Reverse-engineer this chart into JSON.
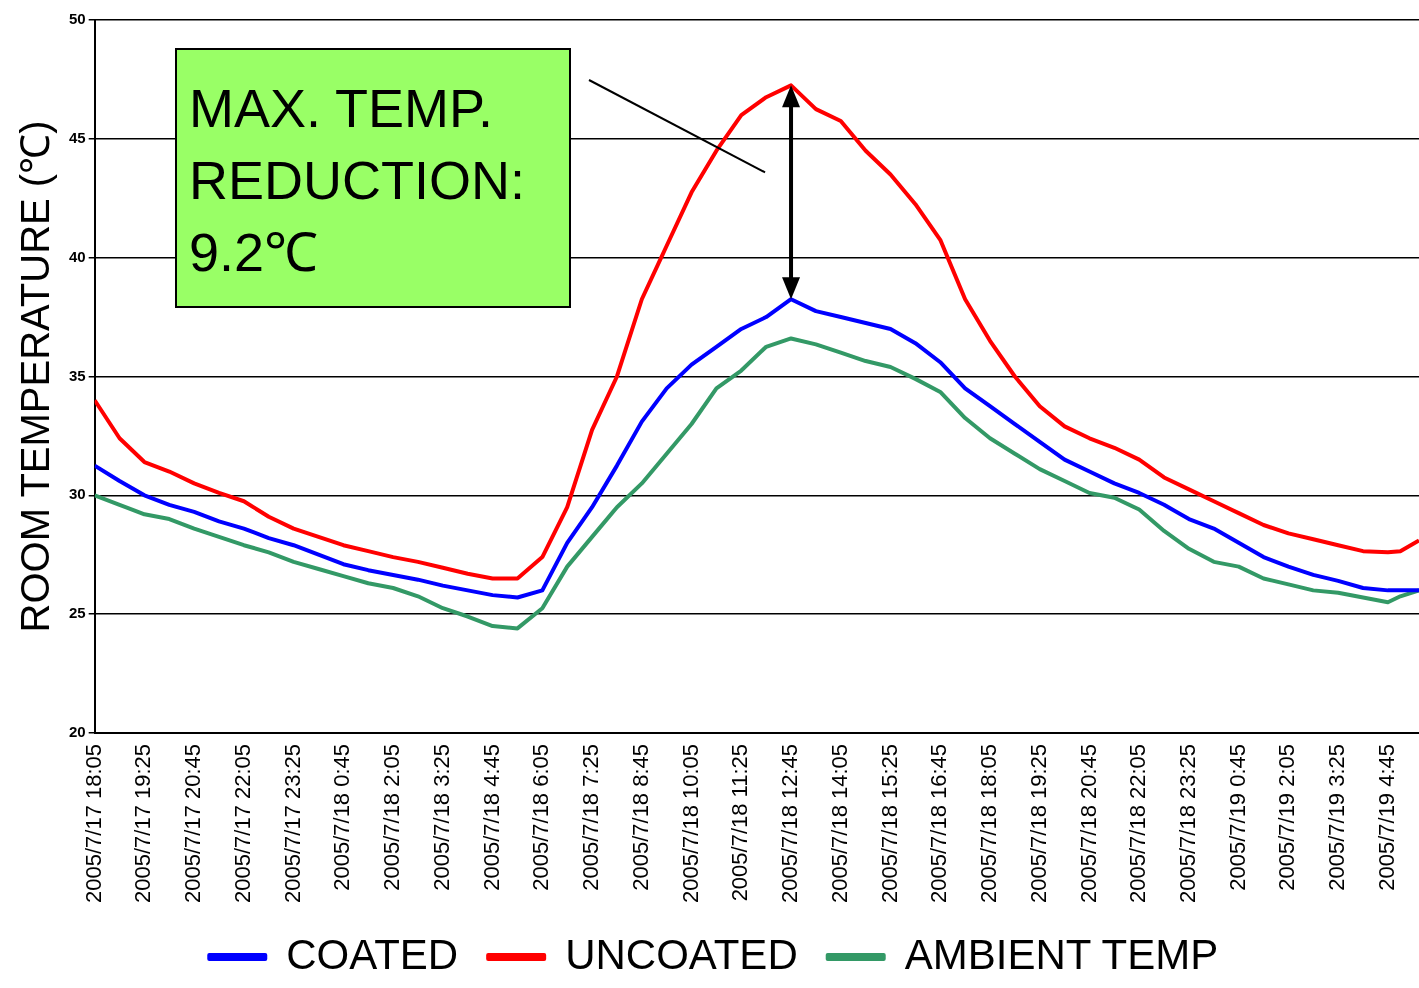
{
  "chart_data": {
    "type": "line",
    "ylabel": "ROOM TEMPERATURE (℃)",
    "annotations": [
      "MAX. TEMP. REDUCTION: 9.2℃"
    ],
    "x": [
      "2005-07-17T18:05",
      "2005-07-17T18:45",
      "2005-07-17T19:25",
      "2005-07-17T20:05",
      "2005-07-17T20:45",
      "2005-07-17T21:25",
      "2005-07-17T22:05",
      "2005-07-17T22:45",
      "2005-07-17T23:25",
      "2005-07-18T00:05",
      "2005-07-18T00:45",
      "2005-07-18T01:25",
      "2005-07-18T02:05",
      "2005-07-18T02:45",
      "2005-07-18T03:25",
      "2005-07-18T04:05",
      "2005-07-18T04:45",
      "2005-07-18T05:25",
      "2005-07-18T06:05",
      "2005-07-18T06:45",
      "2005-07-18T07:25",
      "2005-07-18T08:05",
      "2005-07-18T08:45",
      "2005-07-18T09:25",
      "2005-07-18T10:05",
      "2005-07-18T10:45",
      "2005-07-18T11:25",
      "2005-07-18T12:05",
      "2005-07-18T12:45",
      "2005-07-18T13:25",
      "2005-07-18T14:05",
      "2005-07-18T14:45",
      "2005-07-18T15:25",
      "2005-07-18T16:05",
      "2005-07-18T16:45",
      "2005-07-18T17:25",
      "2005-07-18T18:05",
      "2005-07-18T18:45",
      "2005-07-18T19:25",
      "2005-07-18T20:05",
      "2005-07-18T20:45",
      "2005-07-18T21:25",
      "2005-07-18T22:05",
      "2005-07-18T22:45",
      "2005-07-18T23:25",
      "2005-07-19T00:05",
      "2005-07-19T00:45",
      "2005-07-19T01:25",
      "2005-07-19T02:05",
      "2005-07-19T02:45",
      "2005-07-19T03:25",
      "2005-07-19T04:05",
      "2005-07-19T04:45",
      "2005-07-19T05:05",
      "2005-07-19T05:35"
    ],
    "series": [
      {
        "name": "COATED",
        "color": "#0000ff",
        "values": [
          31.25,
          30.6,
          30.0,
          29.6,
          29.3,
          28.9,
          28.6,
          28.2,
          27.9,
          27.5,
          27.1,
          26.85,
          26.65,
          26.45,
          26.2,
          26.0,
          25.8,
          25.7,
          26.0,
          28.0,
          29.5,
          31.25,
          33.1,
          34.5,
          35.5,
          36.25,
          37.0,
          37.5,
          38.25,
          37.75,
          37.5,
          37.25,
          37.0,
          36.4,
          35.6,
          34.5,
          33.75,
          33.0,
          32.25,
          31.5,
          31.0,
          30.5,
          30.1,
          29.6,
          29.0,
          28.6,
          28.0,
          27.4,
          27.0,
          26.65,
          26.4,
          26.1,
          26.0,
          26.0,
          26.0
        ]
      },
      {
        "name": "UNCOATED",
        "color": "#ff0000",
        "values": [
          34.0,
          32.4,
          31.4,
          31.0,
          30.5,
          30.1,
          29.75,
          29.1,
          28.6,
          28.25,
          27.9,
          27.65,
          27.4,
          27.2,
          26.95,
          26.7,
          26.5,
          26.5,
          27.4,
          29.5,
          32.75,
          35.0,
          38.25,
          40.5,
          42.75,
          44.5,
          46.0,
          46.75,
          47.25,
          46.25,
          45.75,
          44.5,
          43.5,
          42.25,
          40.75,
          38.25,
          36.5,
          35.0,
          33.75,
          32.9,
          32.4,
          32.0,
          31.5,
          30.75,
          30.25,
          29.75,
          29.25,
          28.75,
          28.4,
          28.15,
          27.9,
          27.65,
          27.6,
          27.65,
          28.1
        ]
      },
      {
        "name": "AMBIENT TEMP",
        "color": "#339966",
        "values": [
          30.0,
          29.6,
          29.2,
          29.0,
          28.6,
          28.25,
          27.9,
          27.6,
          27.2,
          26.9,
          26.6,
          26.3,
          26.1,
          25.75,
          25.25,
          24.9,
          24.5,
          24.4,
          25.25,
          27.0,
          28.25,
          29.5,
          30.5,
          31.75,
          33.0,
          34.5,
          35.25,
          36.25,
          36.6,
          36.35,
          36.0,
          35.65,
          35.4,
          34.9,
          34.35,
          33.25,
          32.4,
          31.75,
          31.1,
          30.6,
          30.1,
          29.9,
          29.4,
          28.5,
          27.75,
          27.2,
          27.0,
          26.5,
          26.25,
          26.0,
          25.9,
          25.7,
          25.5,
          25.75,
          26.0
        ]
      }
    ],
    "xlim": [
      "2005-07-17T18:05",
      "2005-07-19T05:35"
    ],
    "xticks": [
      {
        "value": "2005-07-17T18:05",
        "label": "2005/7/17 18:05"
      },
      {
        "value": "2005-07-17T19:25",
        "label": "2005/7/17 19:25"
      },
      {
        "value": "2005-07-17T20:45",
        "label": "2005/7/17 20:45"
      },
      {
        "value": "2005-07-17T22:05",
        "label": "2005/7/17 22:05"
      },
      {
        "value": "2005-07-17T23:25",
        "label": "2005/7/17 23:25"
      },
      {
        "value": "2005-07-18T00:45",
        "label": "2005/7/18 0:45"
      },
      {
        "value": "2005-07-18T02:05",
        "label": "2005/7/18 2:05"
      },
      {
        "value": "2005-07-18T03:25",
        "label": "2005/7/18 3:25"
      },
      {
        "value": "2005-07-18T04:45",
        "label": "2005/7/18 4:45"
      },
      {
        "value": "2005-07-18T06:05",
        "label": "2005/7/18 6:05"
      },
      {
        "value": "2005-07-18T07:25",
        "label": "2005/7/18 7:25"
      },
      {
        "value": "2005-07-18T08:45",
        "label": "2005/7/18 8:45"
      },
      {
        "value": "2005-07-18T10:05",
        "label": "2005/7/18 10:05"
      },
      {
        "value": "2005-07-18T11:25",
        "label": "2005/7/18 11:25"
      },
      {
        "value": "2005-07-18T12:45",
        "label": "2005/7/18 12:45"
      },
      {
        "value": "2005-07-18T14:05",
        "label": "2005/7/18 14:05"
      },
      {
        "value": "2005-07-18T15:25",
        "label": "2005/7/18 15:25"
      },
      {
        "value": "2005-07-18T16:45",
        "label": "2005/7/18 16:45"
      },
      {
        "value": "2005-07-18T18:05",
        "label": "2005/7/18 18:05"
      },
      {
        "value": "2005-07-18T19:25",
        "label": "2005/7/18 19:25"
      },
      {
        "value": "2005-07-18T20:45",
        "label": "2005/7/18 20:45"
      },
      {
        "value": "2005-07-18T22:05",
        "label": "2005/7/18 22:05"
      },
      {
        "value": "2005-07-18T23:25",
        "label": "2005/7/18 23:25"
      },
      {
        "value": "2005-07-19T00:45",
        "label": "2005/7/19 0:45"
      },
      {
        "value": "2005-07-19T02:05",
        "label": "2005/7/19 2:05"
      },
      {
        "value": "2005-07-19T03:25",
        "label": "2005/7/19 3:25"
      },
      {
        "value": "2005-07-19T04:45",
        "label": "2005/7/19 4:45"
      }
    ],
    "ylim": [
      20,
      50
    ],
    "yticks": [
      20,
      25,
      30,
      35,
      40,
      45,
      50
    ],
    "grid": "y",
    "legend": "bottom",
    "marker": "none",
    "line_style": "solid"
  }
}
